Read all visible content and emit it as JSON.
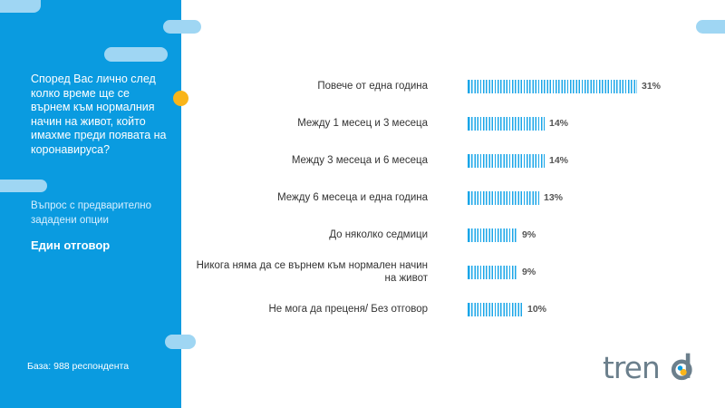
{
  "sidebar": {
    "question": "Според Вас лично след колко време ще се върнем към нормалния начин на живот, който имахме преди появата на коронавируса?",
    "question_type": "Въпрос с предварително зададени опции",
    "answer_mode": "Един отговор",
    "base": "База: 988 респондента",
    "background": "#0a9be0"
  },
  "logo": {
    "text": "trend"
  },
  "chart_data": {
    "type": "bar",
    "orientation": "horizontal",
    "categories": [
      "Повече от една година",
      "Между 1 месец и 3 месеца",
      "Между 3 месеца и 6 месеца",
      "Между 6 месеца и една година",
      "До няколко седмици",
      "Никога няма да се върнем към нормален начин на живот",
      "Не мога да преценя/ Без отговор"
    ],
    "values": [
      31,
      14,
      14,
      13,
      9,
      9,
      10
    ],
    "value_labels": [
      "31%",
      "14%",
      "14%",
      "13%",
      "9%",
      "9%",
      "10%"
    ],
    "unit": "%",
    "xlim": [
      0,
      31
    ],
    "grid": false,
    "legend": "none",
    "bar_color": "#1aa6e8"
  }
}
